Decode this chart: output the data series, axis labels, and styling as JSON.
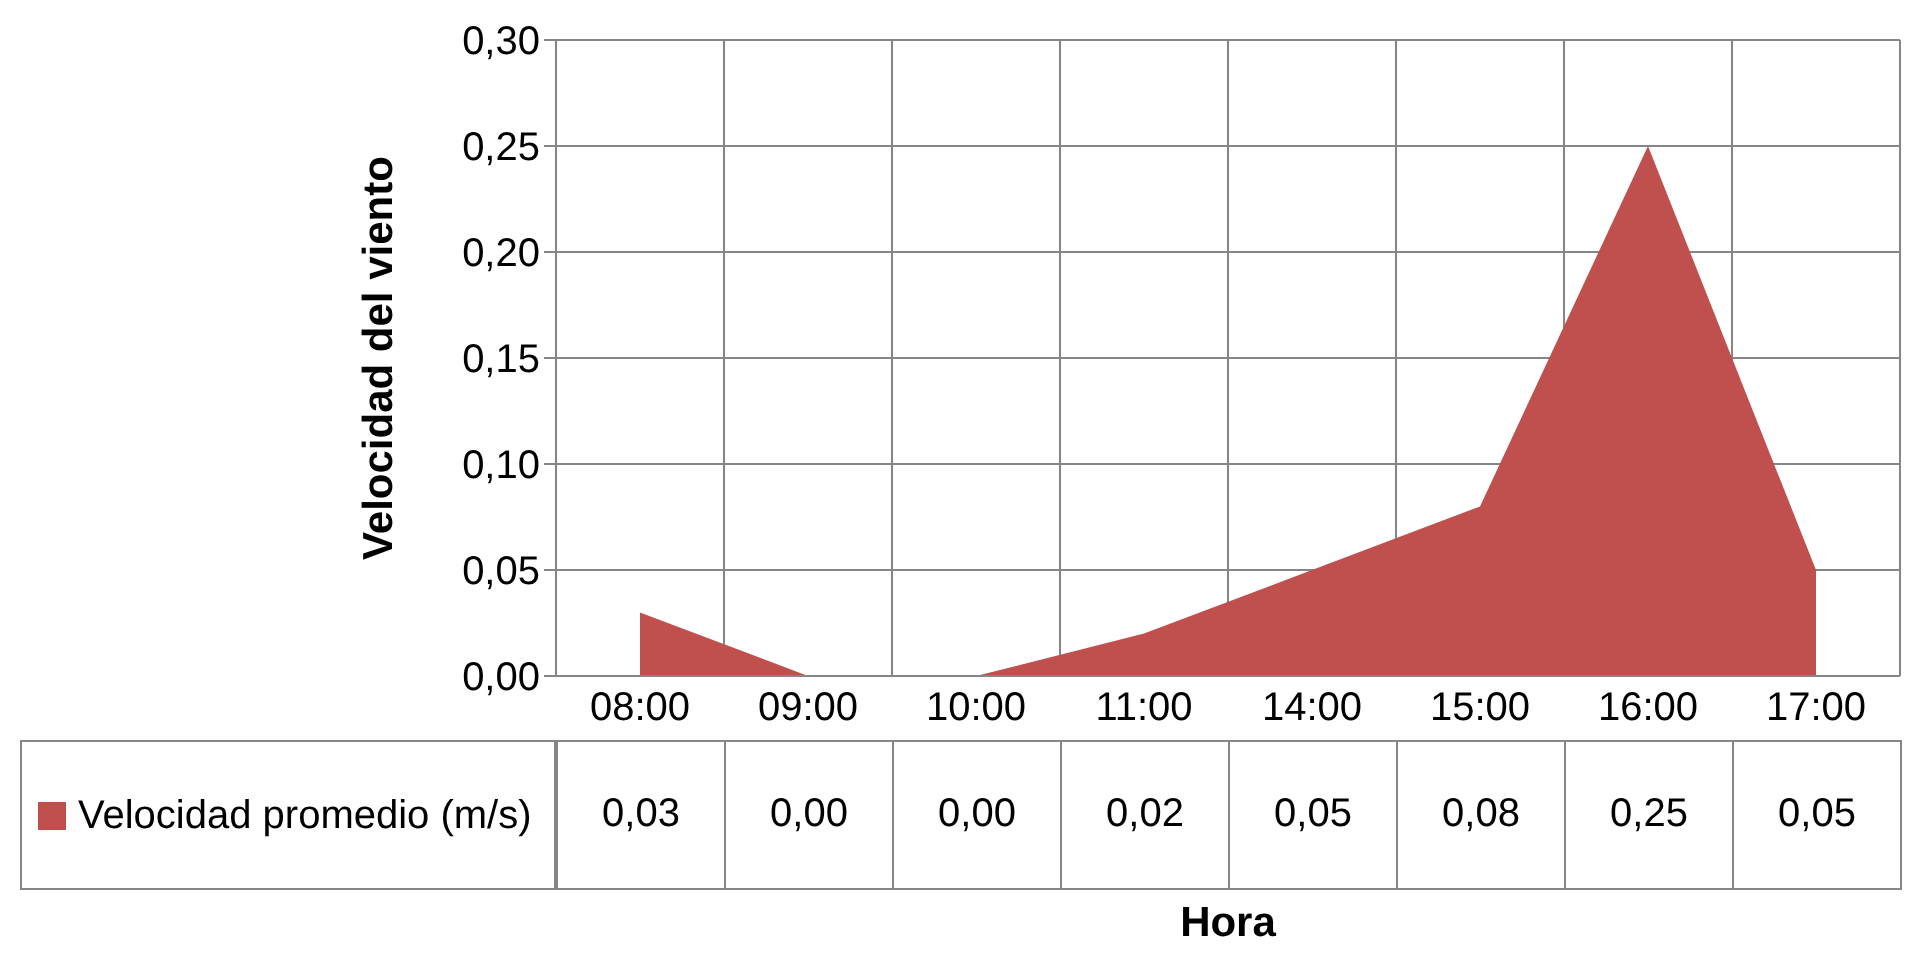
{
  "chart_data": {
    "type": "area",
    "xlabel": "Hora",
    "ylabel": "Velocidad del viento",
    "categories": [
      "08:00",
      "09:00",
      "10:00",
      "11:00",
      "14:00",
      "15:00",
      "16:00",
      "17:00"
    ],
    "series": [
      {
        "name": "Velocidad promedio (m/s)",
        "color": "#c0504d",
        "values": [
          0.03,
          0.0,
          0.0,
          0.02,
          0.05,
          0.08,
          0.25,
          0.05
        ],
        "value_labels": [
          "0,03",
          "0,00",
          "0,00",
          "0,02",
          "0,05",
          "0,08",
          "0,25",
          "0,05"
        ]
      }
    ],
    "ylim": [
      0,
      0.3
    ],
    "yticks": [
      {
        "value": 0,
        "label": "0,00"
      },
      {
        "value": 0.05,
        "label": "0,05"
      },
      {
        "value": 0.1,
        "label": "0,10"
      },
      {
        "value": 0.15,
        "label": "0,15"
      },
      {
        "value": 0.2,
        "label": "0,20"
      },
      {
        "value": 0.25,
        "label": "0,25"
      },
      {
        "value": 0.3,
        "label": "0,30"
      }
    ],
    "grid": true,
    "legend": "bottom left"
  }
}
